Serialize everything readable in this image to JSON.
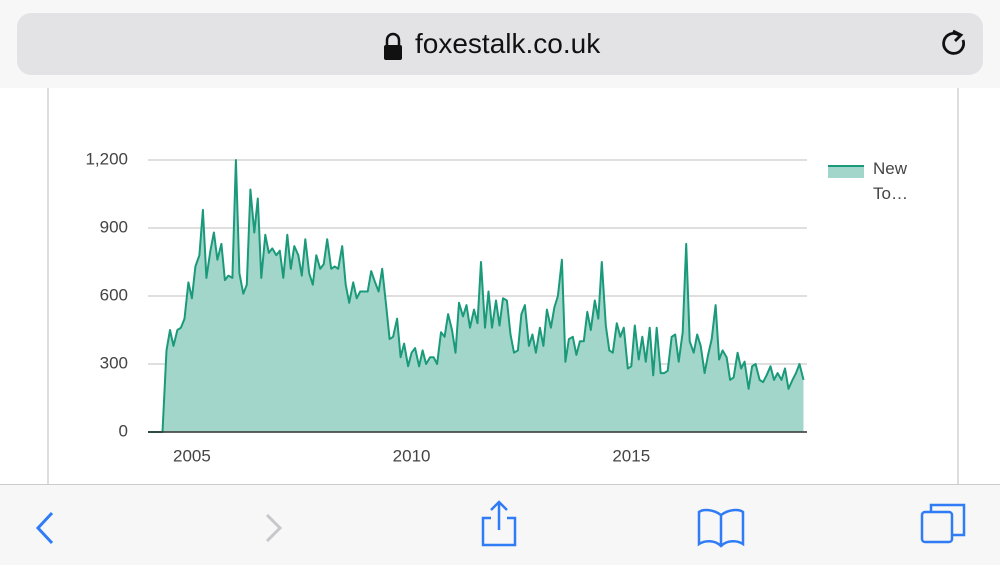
{
  "browser": {
    "url": "foxestalk.co.uk"
  },
  "chart_data": {
    "type": "area",
    "x": [
      2004,
      2004.08,
      2004.17,
      2004.25,
      2004.33,
      2004.42,
      2004.5,
      2004.58,
      2004.67,
      2004.75,
      2004.83,
      2004.92,
      2005,
      2005.08,
      2005.17,
      2005.25,
      2005.33,
      2005.42,
      2005.5,
      2005.58,
      2005.67,
      2005.75,
      2005.83,
      2005.92,
      2006,
      2006.08,
      2006.17,
      2006.25,
      2006.33,
      2006.42,
      2006.5,
      2006.58,
      2006.67,
      2006.75,
      2006.83,
      2006.92,
      2007,
      2007.08,
      2007.17,
      2007.25,
      2007.33,
      2007.42,
      2007.5,
      2007.58,
      2007.67,
      2007.75,
      2007.83,
      2007.92,
      2008,
      2008.08,
      2008.17,
      2008.25,
      2008.33,
      2008.42,
      2008.5,
      2008.58,
      2008.67,
      2008.75,
      2008.83,
      2008.92,
      2009,
      2009.08,
      2009.17,
      2009.25,
      2009.33,
      2009.42,
      2009.5,
      2009.58,
      2009.67,
      2009.75,
      2009.83,
      2009.92,
      2010,
      2010.08,
      2010.17,
      2010.25,
      2010.33,
      2010.42,
      2010.5,
      2010.58,
      2010.67,
      2010.75,
      2010.83,
      2010.92,
      2011,
      2011.08,
      2011.17,
      2011.25,
      2011.33,
      2011.42,
      2011.5,
      2011.58,
      2011.67,
      2011.75,
      2011.83,
      2011.92,
      2012,
      2012.08,
      2012.17,
      2012.25,
      2012.33,
      2012.42,
      2012.5,
      2012.58,
      2012.67,
      2012.75,
      2012.83,
      2012.92,
      2013,
      2013.08,
      2013.17,
      2013.25,
      2013.33,
      2013.42,
      2013.5,
      2013.58,
      2013.67,
      2013.75,
      2013.83,
      2013.92,
      2014,
      2014.08,
      2014.17,
      2014.25,
      2014.33,
      2014.42,
      2014.5,
      2014.58,
      2014.67,
      2014.75,
      2014.83,
      2014.92,
      2015,
      2015.08,
      2015.17,
      2015.25,
      2015.33,
      2015.42,
      2015.5,
      2015.58,
      2015.67,
      2015.75,
      2015.83,
      2015.92,
      2016,
      2016.08,
      2016.17,
      2016.25,
      2016.33,
      2016.42,
      2016.5,
      2016.58,
      2016.67,
      2016.75,
      2016.83,
      2016.92,
      2017,
      2017.08,
      2017.17,
      2017.25,
      2017.33,
      2017.42,
      2017.5,
      2017.58,
      2017.67,
      2017.75,
      2017.83,
      2017.92,
      2018,
      2018.08,
      2018.17,
      2018.25,
      2018.33,
      2018.42,
      2018.5,
      2018.58,
      2018.67,
      2018.75,
      2018.83,
      2018.92
    ],
    "series": [
      {
        "name": "New To…",
        "color": "#1a9a7a",
        "fill": "#a3d6ca",
        "values": [
          0,
          0,
          0,
          0,
          0,
          360,
          450,
          380,
          450,
          460,
          500,
          660,
          590,
          730,
          780,
          980,
          680,
          800,
          880,
          760,
          830,
          670,
          690,
          680,
          1200,
          700,
          610,
          650,
          1070,
          880,
          1030,
          680,
          870,
          790,
          810,
          780,
          800,
          680,
          870,
          720,
          820,
          780,
          690,
          850,
          700,
          650,
          780,
          720,
          740,
          850,
          720,
          730,
          720,
          820,
          650,
          570,
          660,
          590,
          620,
          620,
          620,
          710,
          660,
          620,
          720,
          560,
          410,
          420,
          500,
          330,
          390,
          290,
          350,
          370,
          290,
          360,
          300,
          330,
          330,
          300,
          440,
          420,
          520,
          450,
          350,
          570,
          510,
          560,
          460,
          540,
          480,
          750,
          460,
          620,
          460,
          580,
          470,
          590,
          580,
          430,
          350,
          360,
          520,
          560,
          380,
          430,
          350,
          460,
          380,
          540,
          460,
          550,
          600,
          760,
          310,
          410,
          420,
          340,
          400,
          400,
          530,
          450,
          580,
          500,
          750,
          470,
          360,
          350,
          480,
          420,
          460,
          280,
          290,
          470,
          320,
          420,
          310,
          460,
          250,
          460,
          260,
          260,
          270,
          420,
          430,
          310,
          440,
          830,
          400,
          350,
          430,
          380,
          260,
          340,
          410,
          560,
          320,
          360,
          330,
          230,
          240,
          350,
          280,
          310,
          190,
          290,
          300,
          230,
          220,
          250,
          290,
          230,
          260,
          230,
          280,
          190,
          230,
          260,
          300,
          230
        ]
      }
    ],
    "xlim": [
      2004,
      2019
    ],
    "xticks": [
      2005,
      2010,
      2015
    ],
    "ylim": [
      0,
      1200
    ],
    "yticks": [
      0,
      300,
      600,
      900,
      {
        "value": 1200,
        "label": "1,200"
      }
    ],
    "grid": true,
    "legend": "right"
  }
}
